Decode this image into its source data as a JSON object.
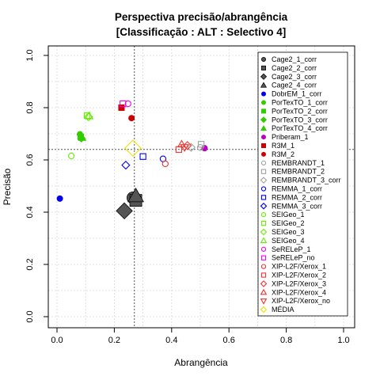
{
  "chart_data": {
    "type": "scatter",
    "title": "Perspectiva precisão/abrangência",
    "subtitle": "[Classificação : ALT : Selectivo 4]",
    "xlabel": "Abrangência",
    "ylabel": "Precisão",
    "xlim": [
      0,
      1
    ],
    "ylim": [
      0,
      1
    ],
    "x_ticks": [
      "0.0",
      "0.2",
      "0.4",
      "0.6",
      "0.8",
      "1.0"
    ],
    "y_ticks": [
      "0.0",
      "0.2",
      "0.4",
      "0.6",
      "0.8",
      "1.0"
    ],
    "grid": true,
    "legend_position": "right",
    "reference_lines": {
      "x": 0.27,
      "y": 0.64
    },
    "series": [
      {
        "name": "Cage2_1_corr",
        "shape": "circle",
        "color": "#555555",
        "filled": true,
        "x": 0.265,
        "y": 0.455,
        "large": true
      },
      {
        "name": "Cage2_2_corr",
        "shape": "square",
        "color": "#555555",
        "filled": true,
        "x": 0.275,
        "y": 0.445,
        "large": true
      },
      {
        "name": "Cage2_3_corr",
        "shape": "diamond",
        "color": "#555555",
        "filled": true,
        "x": 0.235,
        "y": 0.405,
        "large": true
      },
      {
        "name": "Cage2_4_corr",
        "shape": "triangle",
        "color": "#555555",
        "filled": true,
        "x": 0.275,
        "y": 0.462,
        "large": true
      },
      {
        "name": "DobrEM_1_corr",
        "shape": "circle",
        "color": "#0000ee",
        "filled": true,
        "x": 0.01,
        "y": 0.452
      },
      {
        "name": "PorTexTO_1_corr",
        "shape": "circle",
        "color": "#33cc00",
        "filled": true,
        "x": 0.08,
        "y": 0.698
      },
      {
        "name": "PorTexTO_2_corr",
        "shape": "square",
        "color": "#33cc00",
        "filled": true,
        "x": 0.083,
        "y": 0.688
      },
      {
        "name": "PorTexTO_3_corr",
        "shape": "diamond",
        "color": "#33cc00",
        "filled": true,
        "x": 0.085,
        "y": 0.683
      },
      {
        "name": "PorTexTO_4_corr",
        "shape": "triangle",
        "color": "#33cc00",
        "filled": true,
        "x": 0.088,
        "y": 0.685
      },
      {
        "name": "Priberam_1",
        "shape": "circle",
        "color": "#bb00bb",
        "filled": true,
        "x": 0.515,
        "y": 0.645
      },
      {
        "name": "R3M_1",
        "shape": "square",
        "color": "#cc0000",
        "filled": true,
        "x": 0.225,
        "y": 0.8
      },
      {
        "name": "R3M_2",
        "shape": "circle",
        "color": "#cc0000",
        "filled": true,
        "x": 0.26,
        "y": 0.76
      },
      {
        "name": "REMBRANDT_1",
        "shape": "circle",
        "color": "#a0a0a0",
        "filled": false,
        "x": 0.5,
        "y": 0.648
      },
      {
        "name": "REMBRANDT_2",
        "shape": "square",
        "color": "#a0a0a0",
        "filled": false,
        "x": 0.503,
        "y": 0.66
      },
      {
        "name": "REMBRANDT_3_corr",
        "shape": "diamond",
        "color": "#a0a0a0",
        "filled": false,
        "x": 0.468,
        "y": 0.648
      },
      {
        "name": "REMMA_1_corr",
        "shape": "circle",
        "color": "#0000ee",
        "filled": false,
        "x": 0.37,
        "y": 0.604
      },
      {
        "name": "REMMA_2_corr",
        "shape": "square",
        "color": "#0000ee",
        "filled": false,
        "x": 0.3,
        "y": 0.613
      },
      {
        "name": "REMMA_3_corr",
        "shape": "diamond",
        "color": "#0000ee",
        "filled": false,
        "x": 0.24,
        "y": 0.58
      },
      {
        "name": "SEIGeo_1",
        "shape": "circle",
        "color": "#66ee00",
        "filled": false,
        "x": 0.05,
        "y": 0.615
      },
      {
        "name": "SEIGeo_2",
        "shape": "square",
        "color": "#66ee00",
        "filled": false,
        "x": 0.105,
        "y": 0.77
      },
      {
        "name": "SEIGeo_3",
        "shape": "diamond",
        "color": "#66ee00",
        "filled": false,
        "x": 0.11,
        "y": 0.765
      },
      {
        "name": "SEIGeo_4",
        "shape": "triangle",
        "color": "#66ee00",
        "filled": false,
        "x": 0.112,
        "y": 0.768
      },
      {
        "name": "SeRELeP_1",
        "shape": "circle",
        "color": "#ee00ee",
        "filled": false,
        "x": 0.248,
        "y": 0.815
      },
      {
        "name": "SeRELeP_no",
        "shape": "square",
        "color": "#ee00ee",
        "filled": false,
        "x": 0.23,
        "y": 0.815
      },
      {
        "name": "XIP-L2F/Xerox_1",
        "shape": "circle",
        "color": "#ee3333",
        "filled": false,
        "x": 0.378,
        "y": 0.585
      },
      {
        "name": "XIP-L2F/Xerox_2",
        "shape": "square",
        "color": "#ee3333",
        "filled": false,
        "x": 0.425,
        "y": 0.64
      },
      {
        "name": "XIP-L2F/Xerox_3",
        "shape": "diamond",
        "color": "#ee3333",
        "filled": false,
        "x": 0.455,
        "y": 0.655
      },
      {
        "name": "XIP-L2F/Xerox_4",
        "shape": "triangle",
        "color": "#ee3333",
        "filled": false,
        "x": 0.435,
        "y": 0.66
      },
      {
        "name": "XIP-L2F/Xerox_no",
        "shape": "triangle_down",
        "color": "#ee3333",
        "filled": false,
        "x": 0.445,
        "y": 0.648
      },
      {
        "name": "MÉDIA",
        "shape": "diamond",
        "color": "#ffee00",
        "filled": false,
        "x": 0.265,
        "y": 0.645,
        "large": true
      }
    ]
  }
}
